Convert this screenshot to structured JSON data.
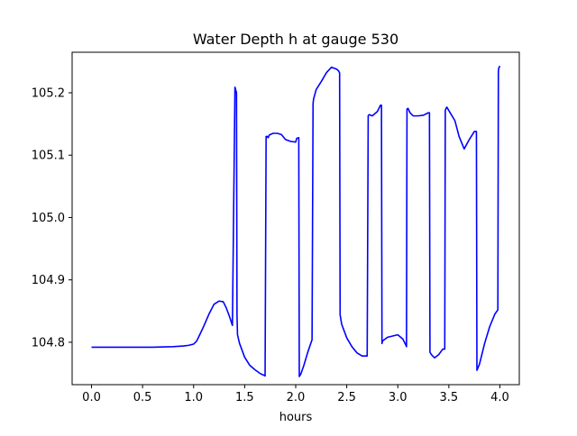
{
  "chart_data": {
    "type": "line",
    "title": "Water Depth h at gauge 530",
    "xlabel": "hours",
    "ylabel": "",
    "xlim": [
      -0.19,
      4.19
    ],
    "ylim": [
      104.732,
      105.265
    ],
    "xticks": [
      0.0,
      0.5,
      1.0,
      1.5,
      2.0,
      2.5,
      3.0,
      3.5,
      4.0
    ],
    "xtick_labels": [
      "0.0",
      "0.5",
      "1.0",
      "1.5",
      "2.0",
      "2.5",
      "3.0",
      "3.5",
      "4.0"
    ],
    "yticks": [
      104.8,
      104.9,
      105.0,
      105.1,
      105.2
    ],
    "ytick_labels": [
      "104.8",
      "104.9",
      "105.0",
      "105.1",
      "105.2"
    ],
    "grid": false,
    "legend": "none",
    "series": [
      {
        "color": "#0000ff",
        "x": [
          0.0,
          0.2,
          0.4,
          0.6,
          0.8,
          0.9,
          0.95,
          1.0,
          1.03,
          1.06,
          1.1,
          1.15,
          1.2,
          1.25,
          1.29,
          1.32,
          1.35,
          1.38,
          1.405,
          1.408,
          1.42,
          1.425,
          1.43,
          1.45,
          1.5,
          1.55,
          1.6,
          1.65,
          1.69,
          1.7,
          1.71,
          1.72,
          1.73,
          1.74,
          1.75,
          1.78,
          1.82,
          1.86,
          1.9,
          1.95,
          2.0,
          2.01,
          2.03,
          2.035,
          2.05,
          2.08,
          2.12,
          2.16,
          2.17,
          2.175,
          2.2,
          2.25,
          2.3,
          2.35,
          2.4,
          2.42,
          2.43,
          2.435,
          2.45,
          2.5,
          2.55,
          2.6,
          2.65,
          2.69,
          2.7,
          2.71,
          2.72,
          2.75,
          2.8,
          2.83,
          2.84,
          2.845,
          2.85,
          2.9,
          2.95,
          3.0,
          3.05,
          3.08,
          3.085,
          3.09,
          3.1,
          3.12,
          3.15,
          3.2,
          3.25,
          3.3,
          3.31,
          3.315,
          3.33,
          3.36,
          3.4,
          3.44,
          3.46,
          3.465,
          3.47,
          3.48,
          3.52,
          3.56,
          3.6,
          3.65,
          3.7,
          3.75,
          3.77,
          3.775,
          3.8,
          3.85,
          3.9,
          3.95,
          3.98,
          3.985,
          3.99,
          4.0
        ],
        "y": [
          104.792,
          104.792,
          104.792,
          104.792,
          104.793,
          104.794,
          104.795,
          104.797,
          104.802,
          104.812,
          104.826,
          104.845,
          104.861,
          104.866,
          104.865,
          104.855,
          104.842,
          104.827,
          105.209,
          105.207,
          105.2,
          104.842,
          104.812,
          104.798,
          104.776,
          104.763,
          104.756,
          104.75,
          104.747,
          104.746,
          105.13,
          105.13,
          105.128,
          105.132,
          105.133,
          105.135,
          105.135,
          105.133,
          105.125,
          105.122,
          105.121,
          105.127,
          105.128,
          104.745,
          104.749,
          104.763,
          104.785,
          104.804,
          105.183,
          105.19,
          105.205,
          105.218,
          105.232,
          105.241,
          105.238,
          105.235,
          105.232,
          104.844,
          104.829,
          104.807,
          104.793,
          104.783,
          104.778,
          104.778,
          104.778,
          105.163,
          105.165,
          105.163,
          105.17,
          105.18,
          105.18,
          104.798,
          104.802,
          104.808,
          104.81,
          104.812,
          104.805,
          104.795,
          104.793,
          105.174,
          105.175,
          105.168,
          105.163,
          105.163,
          105.164,
          105.168,
          105.168,
          104.784,
          104.78,
          104.775,
          104.78,
          104.789,
          104.789,
          105.172,
          105.174,
          105.177,
          105.166,
          105.155,
          105.13,
          105.11,
          105.125,
          105.138,
          105.138,
          104.755,
          104.765,
          104.798,
          104.825,
          104.845,
          104.852,
          105.235,
          105.24,
          105.243
        ]
      }
    ]
  }
}
